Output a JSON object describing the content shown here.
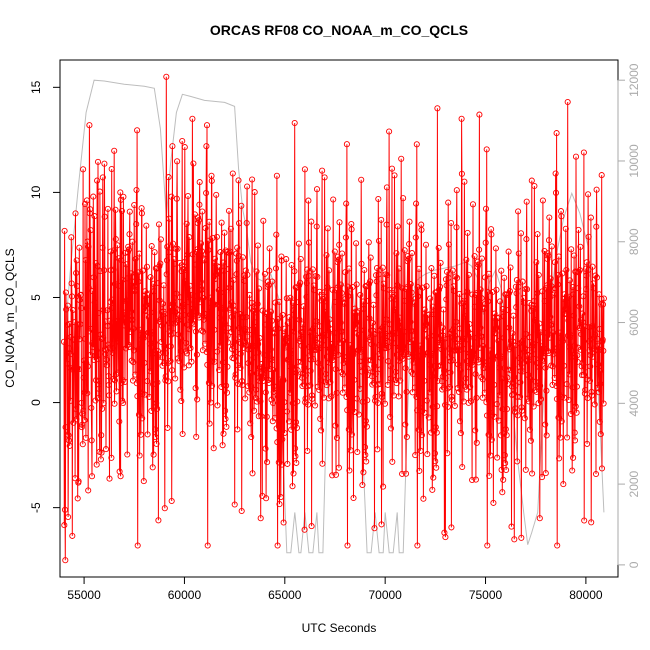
{
  "chart_data": {
    "type": "line",
    "title": "ORCAS RF08 CO_NOAA_m_CO_QCLS",
    "xlabel": "UTC Seconds",
    "ylabel": "CO_NOAA_m_CO_QCLS",
    "xlim": [
      53800,
      81600
    ],
    "ylim": [
      -8.3,
      16.3
    ],
    "xticks": [
      55000,
      60000,
      65000,
      70000,
      75000,
      80000
    ],
    "yticks": [
      -5,
      0,
      5,
      10,
      15
    ],
    "y2lim": [
      -300,
      12500
    ],
    "y2ticks": [
      0,
      2000,
      4000,
      6000,
      8000,
      10000,
      12000
    ],
    "grid": false,
    "series": [
      {
        "style": "gray-line",
        "axis": "right",
        "x": [
          54000,
          54300,
          54700,
          55100,
          55500,
          56000,
          57000,
          58000,
          58500,
          58800,
          59100,
          59300,
          59600,
          59900,
          60300,
          61000,
          62000,
          62500,
          62700,
          62900,
          63100,
          63300,
          63600,
          64000,
          64300,
          64700,
          65000,
          65100,
          65300,
          65500,
          65700,
          65800,
          66000,
          66200,
          66400,
          66600,
          66700,
          66900,
          67100,
          67300,
          67500,
          67700,
          68000,
          68400,
          68700,
          68900,
          69100,
          69300,
          69500,
          69700,
          69900,
          70000,
          70200,
          70400,
          70600,
          70700,
          70900,
          71100,
          71300,
          71500,
          71700,
          72000,
          72500,
          73000,
          73500,
          74000,
          74300,
          74600,
          74900,
          75200,
          75500,
          75800,
          76000,
          76300,
          76600,
          76900,
          77100,
          77300,
          77600,
          77900,
          78200,
          78500,
          78900,
          79300,
          79700,
          80100,
          80400,
          80700,
          80900
        ],
        "y": [
          5400,
          7200,
          9300,
          11200,
          12000,
          11980,
          11900,
          11850,
          11800,
          10800,
          8600,
          9900,
          11200,
          11650,
          11600,
          11500,
          11450,
          11350,
          9800,
          8800,
          8300,
          7500,
          7100,
          7000,
          7200,
          6600,
          1600,
          300,
          300,
          1300,
          300,
          300,
          1300,
          300,
          300,
          1300,
          300,
          300,
          4200,
          6300,
          6900,
          7000,
          6900,
          6700,
          5400,
          2600,
          300,
          300,
          1300,
          300,
          300,
          1300,
          300,
          300,
          1300,
          300,
          300,
          3500,
          6100,
          7000,
          7100,
          7200,
          7300,
          7350,
          7400,
          7500,
          7400,
          7100,
          6200,
          7000,
          7300,
          6800,
          5800,
          4200,
          2600,
          1300,
          500,
          800,
          1300,
          4200,
          6300,
          7600,
          8600,
          9200,
          8700,
          7900,
          6100,
          3500,
          1300
        ]
      },
      {
        "style": "red-points-line",
        "axis": "left",
        "x": [],
        "y": [],
        "generated": {
          "n": 1700,
          "x_start": 54000,
          "x_end": 80900,
          "seed": 20151,
          "base_segments": [
            [
              54000,
              1.5
            ],
            [
              54600,
              2.5
            ],
            [
              55500,
              3.5
            ],
            [
              57000,
              3.8
            ],
            [
              58800,
              4.2
            ],
            [
              59700,
              4.8
            ],
            [
              61500,
              5.6
            ],
            [
              62800,
              4.2
            ],
            [
              63500,
              2.8
            ],
            [
              64800,
              1.6
            ],
            [
              65300,
              3.2
            ],
            [
              67000,
              3.5
            ],
            [
              68500,
              3.2
            ],
            [
              70500,
              3.6
            ],
            [
              72500,
              3.0
            ],
            [
              73500,
              3.4
            ],
            [
              75200,
              3.0
            ],
            [
              77000,
              2.8
            ],
            [
              78500,
              3.8
            ],
            [
              79500,
              4.0
            ],
            [
              80900,
              3.2
            ]
          ],
          "noise_sd": 3.3,
          "extremes": [
            [
              54060,
              -7.5
            ],
            [
              54950,
              11.1
            ],
            [
              55300,
              9.2
            ],
            [
              56800,
              10.0
            ],
            [
              57500,
              9.4
            ],
            [
              58700,
              -5.6
            ],
            [
              59100,
              15.5
            ],
            [
              59400,
              12.2
            ],
            [
              60400,
              13.5
            ],
            [
              61100,
              12.2
            ],
            [
              62400,
              10.9
            ],
            [
              63800,
              -5.5
            ],
            [
              64800,
              -4.5
            ],
            [
              65500,
              13.3
            ],
            [
              66000,
              11.1
            ],
            [
              67700,
              -3.1
            ],
            [
              68800,
              10.6
            ],
            [
              69900,
              -4.0
            ],
            [
              70200,
              12.9
            ],
            [
              70800,
              11.6
            ],
            [
              71500,
              -2.5
            ],
            [
              72600,
              14.0
            ],
            [
              73000,
              -6.4
            ],
            [
              73800,
              13.5
            ],
            [
              74700,
              13.7
            ],
            [
              75800,
              -3.2
            ],
            [
              76300,
              -5.9
            ],
            [
              77000,
              -3.2
            ],
            [
              77700,
              -5.5
            ],
            [
              78500,
              10.9
            ],
            [
              79100,
              14.3
            ],
            [
              79500,
              11.7
            ],
            [
              79900,
              11.9
            ],
            [
              80500,
              -3.4
            ]
          ]
        }
      }
    ]
  }
}
